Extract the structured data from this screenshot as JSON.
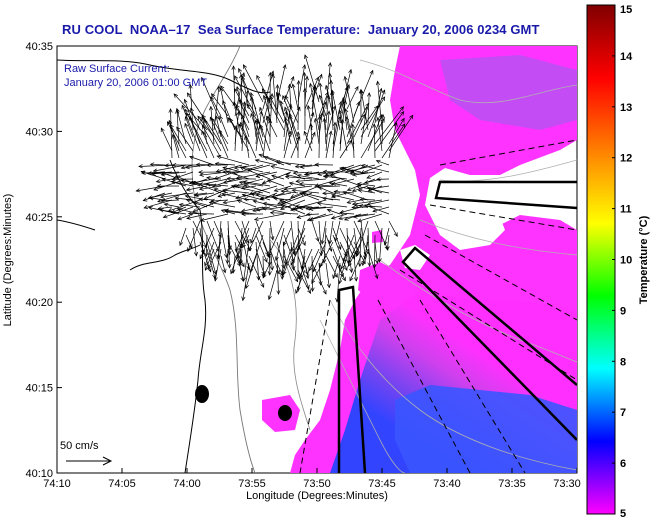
{
  "title": "RU COOL  NOAA–17  Sea Surface Temperature:  January 20, 2006 0234 GMT",
  "legend": {
    "line1": "Raw Surface Current:",
    "line2": "January 20, 2006 01:00 GMT",
    "scale_label": "50 cm/s"
  },
  "axes": {
    "xlabel": "Longitude (Degrees:Minutes)",
    "ylabel": "Latitude (Degrees:Minutes)",
    "x_ticks": [
      "74:10",
      "74:05",
      "74:00",
      "73:55",
      "73:50",
      "73:45",
      "73:40",
      "73:35",
      "73:30"
    ],
    "y_ticks": [
      "40:35",
      "40:30",
      "40:25",
      "40:20",
      "40:15",
      "40:10"
    ]
  },
  "colorbar": {
    "label": "Temperature (°C)",
    "ticks": [
      "15",
      "14",
      "13",
      "12",
      "11",
      "10",
      "9",
      "8",
      "7",
      "6",
      "5"
    ],
    "min": 5,
    "max": 15,
    "stops": [
      "#ff00ff",
      "#0000ff",
      "#00ffff",
      "#00ff00",
      "#ffff00",
      "#ff8000",
      "#ff0000",
      "#800000"
    ]
  },
  "colors": {
    "sst_warm": "#ff33ff",
    "sst_mid": "#c844ee",
    "sst_cool": "#3355ff",
    "title_text": "#1a1aaa"
  }
}
